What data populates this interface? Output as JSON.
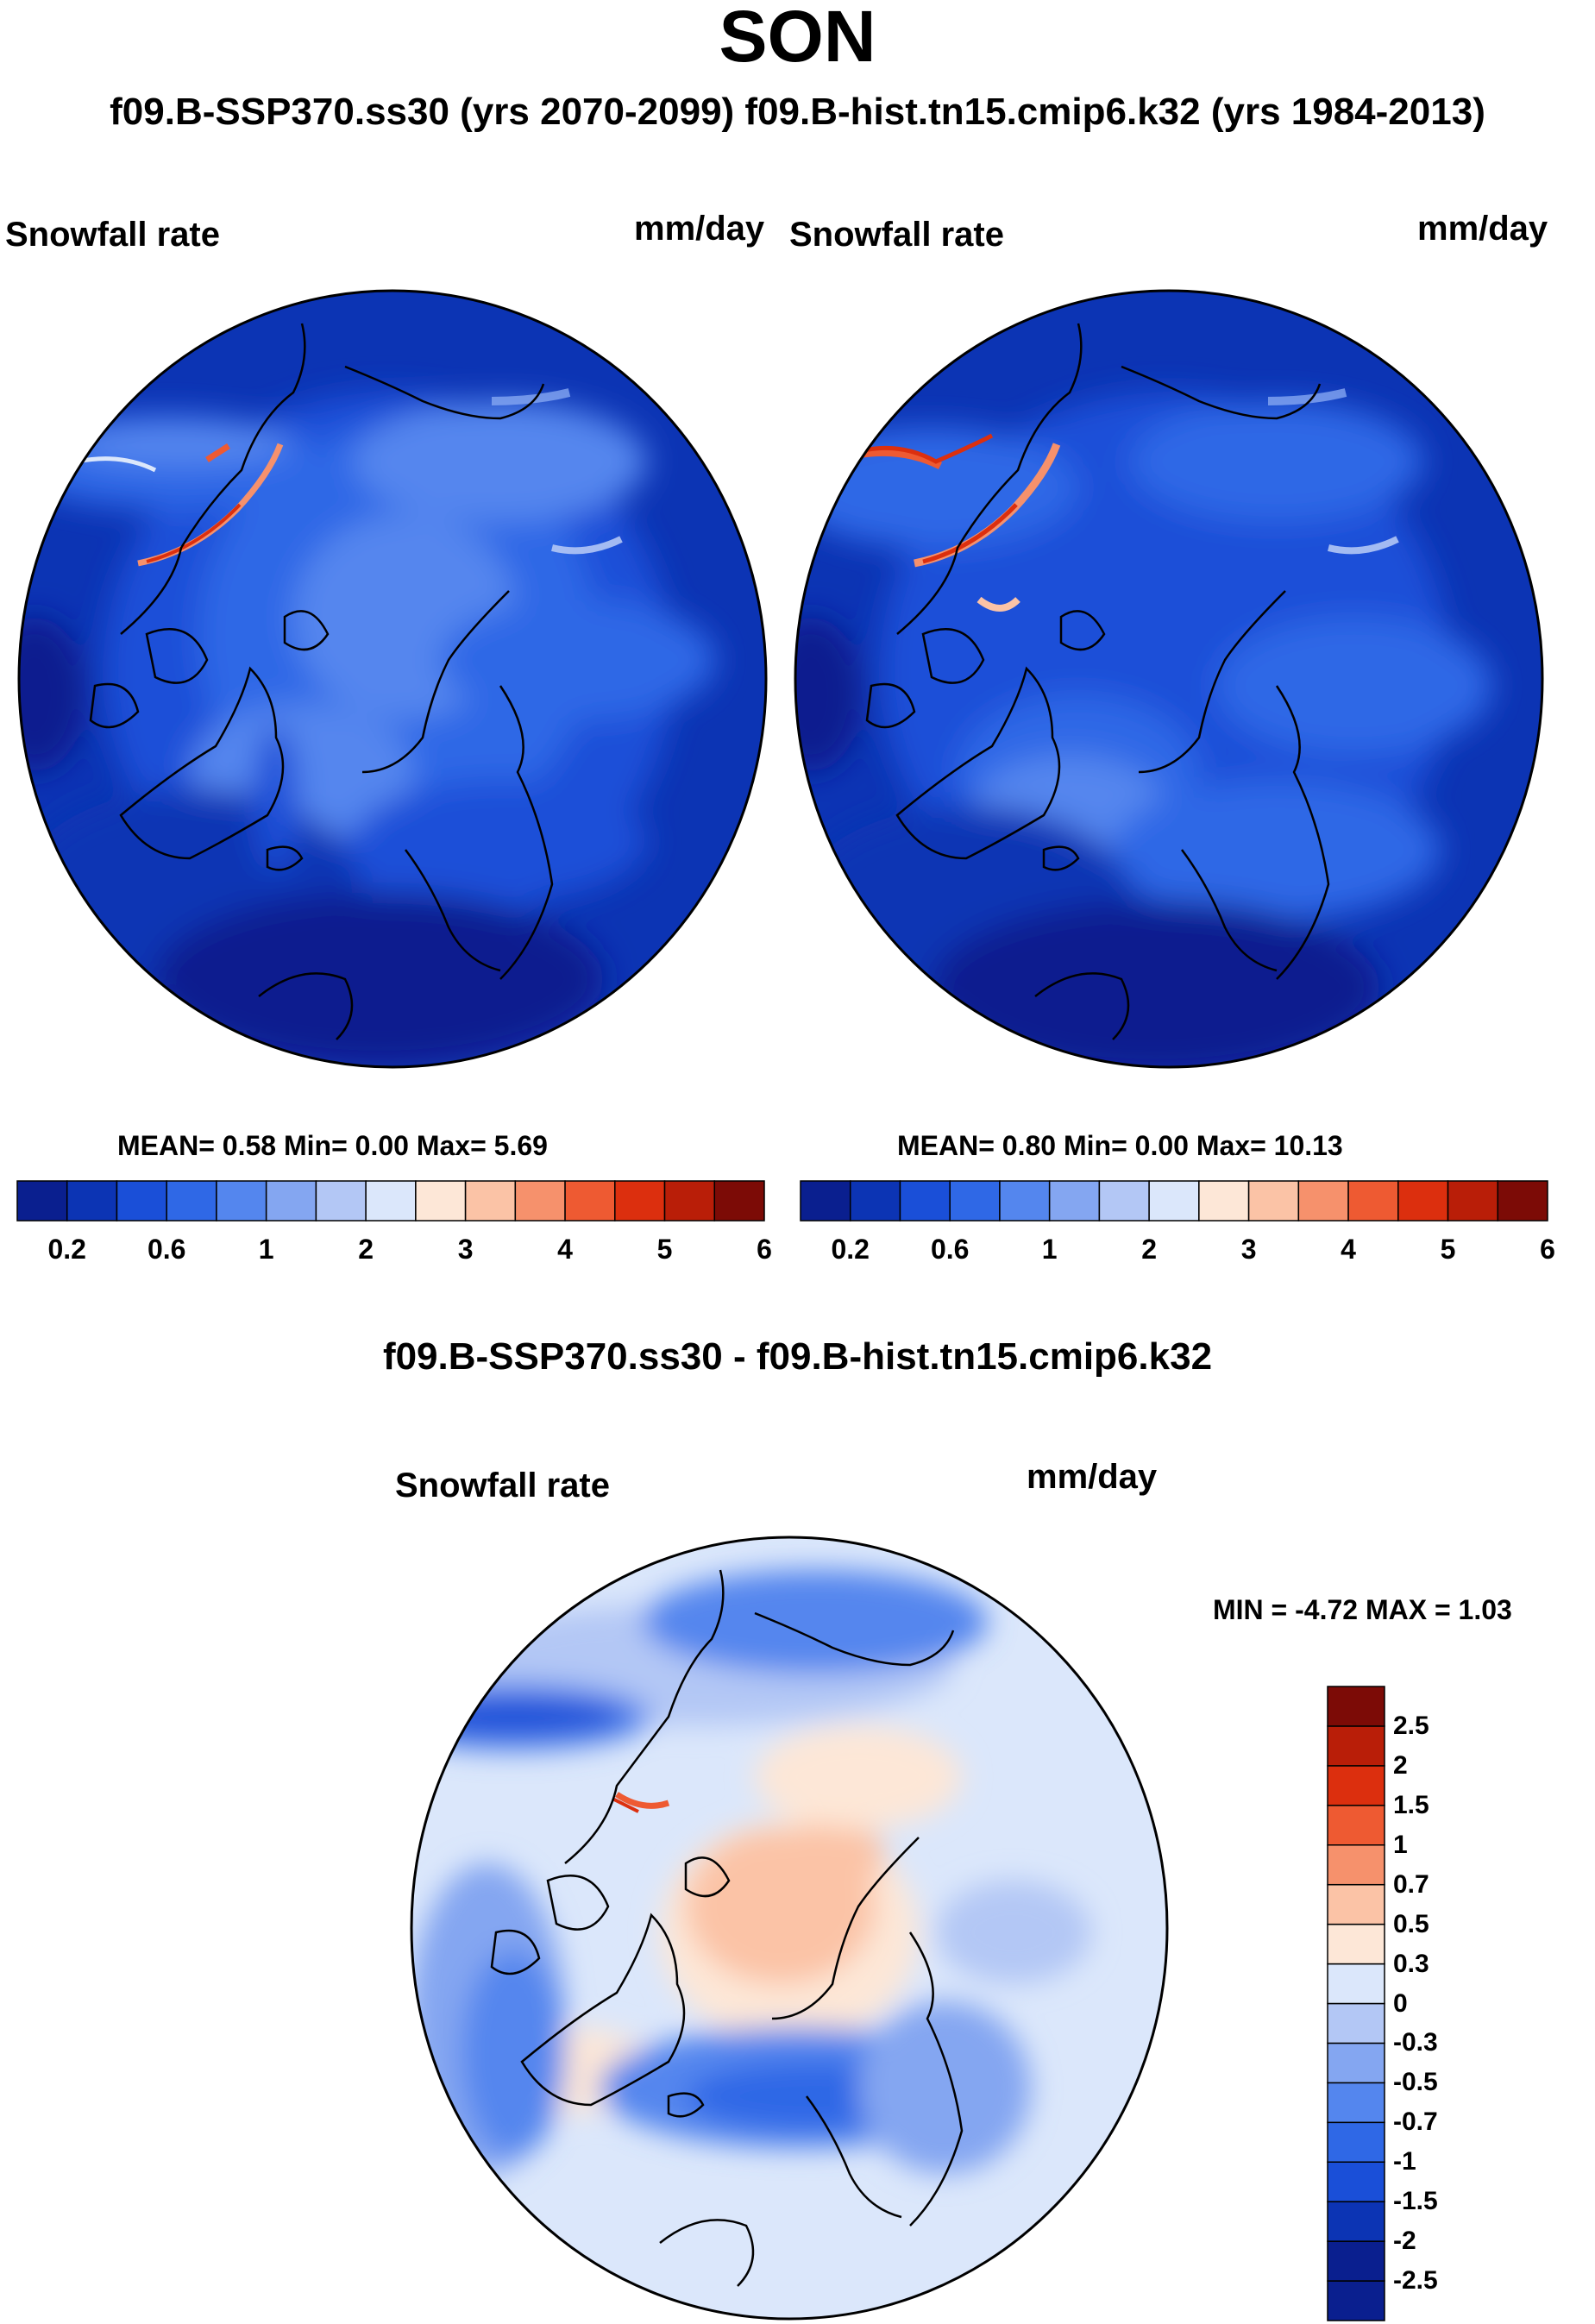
{
  "page": {
    "season": "SON",
    "subtitle": "f09.B-SSP370.ss30 (yrs 2070-2099)  f09.B-hist.tn15.cmip6.k32 (yrs 1984-2013)",
    "diff_title": "f09.B-SSP370.ss30 - f09.B-hist.tn15.cmip6.k32"
  },
  "panels": {
    "left": {
      "variable": "Snowfall rate",
      "units": "mm/day",
      "stats": "MEAN=   0.58  Min=   0.00  Max=   5.69"
    },
    "right": {
      "variable": "Snowfall rate",
      "units": "mm/day",
      "stats": "MEAN=   0.80  Min=   0.00  Max=  10.13"
    },
    "diff": {
      "variable": "Snowfall rate",
      "units": "mm/day",
      "stats": "MIN =  -4.72  MAX =   1.03"
    }
  },
  "colorbars": {
    "abs": {
      "colors": [
        "#0a1f8f",
        "#0c34b4",
        "#1a4fd8",
        "#2f68e6",
        "#5486ee",
        "#84a6f1",
        "#b3c7f5",
        "#dbe7fb",
        "#fde7d7",
        "#fbc3a6",
        "#f6916c",
        "#ee5a32",
        "#dc2f0e",
        "#b91e08",
        "#7c0b06"
      ],
      "tick_labels": [
        "0.2",
        "0.6",
        "1",
        "2",
        "3",
        "4",
        "5",
        "6"
      ]
    },
    "diff": {
      "colors": [
        "#0a1f8f",
        "#0c34b4",
        "#1a4fd8",
        "#2f68e6",
        "#5486ee",
        "#84a6f1",
        "#b3c7f5",
        "#dbe7fb",
        "#fde7d7",
        "#fbc3a6",
        "#f6916c",
        "#ee5a32",
        "#dc2f0e",
        "#b91e08",
        "#7c0b06"
      ],
      "tick_labels": [
        "-2.5",
        "-2",
        "-1.5",
        "-1",
        "-0.7",
        "-0.5",
        "-0.3",
        "0",
        "0.3",
        "0.5",
        "0.7",
        "1",
        "1.5",
        "2",
        "2.5"
      ]
    }
  },
  "chart_data": [
    {
      "type": "heatmap",
      "title": "Snowfall rate (SON) f09.B-SSP370.ss30 (yrs 2070-2099)",
      "units": "mm/day",
      "projection": "north polar stereographic",
      "mean": 0.58,
      "min": 0.0,
      "max": 5.69,
      "contour_levels": [
        0.2,
        0.4,
        0.6,
        0.8,
        1,
        1.5,
        2,
        2.5,
        3,
        3.5,
        4,
        4.5,
        5,
        5.5,
        6
      ]
    },
    {
      "type": "heatmap",
      "title": "Snowfall rate (SON) f09.B-hist.tn15.cmip6.k32 (yrs 1984-2013)",
      "units": "mm/day",
      "projection": "north polar stereographic",
      "mean": 0.8,
      "min": 0.0,
      "max": 10.13,
      "contour_levels": [
        0.2,
        0.4,
        0.6,
        0.8,
        1,
        1.5,
        2,
        2.5,
        3,
        3.5,
        4,
        4.5,
        5,
        5.5,
        6
      ]
    },
    {
      "type": "heatmap",
      "title": "f09.B-SSP370.ss30 - f09.B-hist.tn15.cmip6.k32",
      "units": "mm/day",
      "projection": "north polar stereographic",
      "min": -4.72,
      "max": 1.03,
      "contour_levels": [
        -2.5,
        -2,
        -1.5,
        -1,
        -0.7,
        -0.5,
        -0.3,
        0,
        0.3,
        0.5,
        0.7,
        1,
        1.5,
        2,
        2.5
      ]
    }
  ]
}
